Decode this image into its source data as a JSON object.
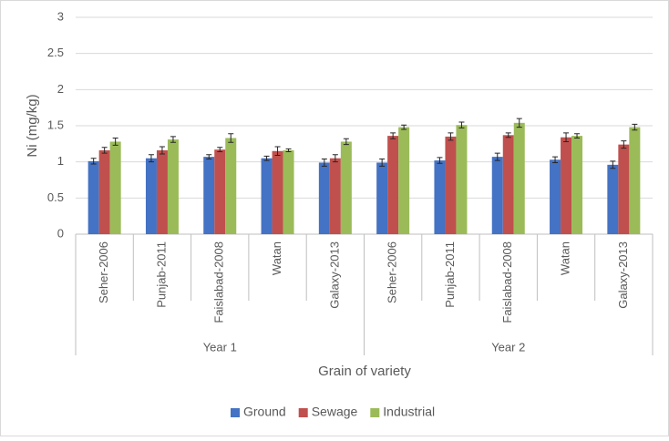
{
  "chart_data": {
    "type": "bar",
    "y_label": "Ni (mg/kg)",
    "x_label": "Grain of variety",
    "categories": [
      "Seher-2006",
      "Punjab-2011",
      "Faislabad-2008",
      "Watan",
      "Galaxy-2013",
      "Seher-2006",
      "Punjab-2011",
      "Faislabad-2008",
      "Watan",
      "Galaxy-2013"
    ],
    "category_groups": [
      "Year 1",
      "Year 2"
    ],
    "series": [
      {
        "name": "Ground",
        "color": "#4472c4",
        "values": [
          1.01,
          1.05,
          1.07,
          1.05,
          0.99,
          0.99,
          1.02,
          1.07,
          1.03,
          0.96
        ],
        "errors": [
          0.04,
          0.05,
          0.03,
          0.03,
          0.05,
          0.05,
          0.04,
          0.05,
          0.04,
          0.05
        ]
      },
      {
        "name": "Sewage",
        "color": "#c0504d",
        "values": [
          1.16,
          1.16,
          1.17,
          1.15,
          1.05,
          1.36,
          1.35,
          1.37,
          1.34,
          1.24
        ],
        "errors": [
          0.04,
          0.05,
          0.03,
          0.06,
          0.05,
          0.04,
          0.05,
          0.03,
          0.06,
          0.05
        ]
      },
      {
        "name": "Industrial",
        "color": "#9bbb59",
        "values": [
          1.28,
          1.31,
          1.33,
          1.16,
          1.28,
          1.48,
          1.51,
          1.54,
          1.36,
          1.48
        ],
        "errors": [
          0.05,
          0.04,
          0.06,
          0.02,
          0.04,
          0.03,
          0.04,
          0.06,
          0.03,
          0.04
        ]
      }
    ],
    "ylim": [
      0,
      3
    ],
    "yticks": [
      0,
      0.5,
      1,
      1.5,
      2,
      2.5,
      3
    ],
    "grid": true,
    "legend": "bottom"
  }
}
